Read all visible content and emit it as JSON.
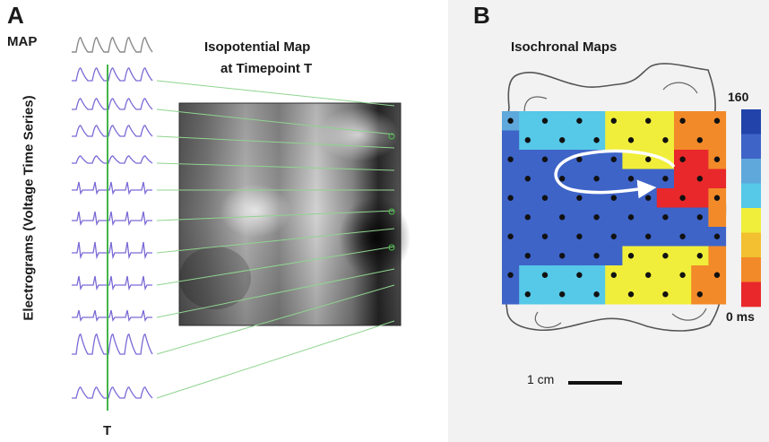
{
  "panel_a": {
    "letter": "A",
    "map_label": "MAP",
    "electrograms_label": "Electrograms (Voltage Time Series)",
    "time_label": "T",
    "isopotential_title_line1": "Isopotential Map",
    "isopotential_title_line2": "at Timepoint T",
    "trace_color": "#7a6ad6",
    "map_trace_color": "#8a8a8a",
    "timepoint_line_color": "#43b54a",
    "connector_color": "#8fd48f"
  },
  "panel_b": {
    "letter": "B",
    "title": "Isochronal Maps",
    "colorbar_max": "160",
    "colorbar_min": "0 ms",
    "scalebar_label": "1 cm",
    "colorbar_colors": [
      "#2244aa",
      "#3e64c8",
      "#5ea8dc",
      "#56c8e8",
      "#f0ee3a",
      "#f2c030",
      "#f28a2a",
      "#e8282a"
    ]
  }
}
